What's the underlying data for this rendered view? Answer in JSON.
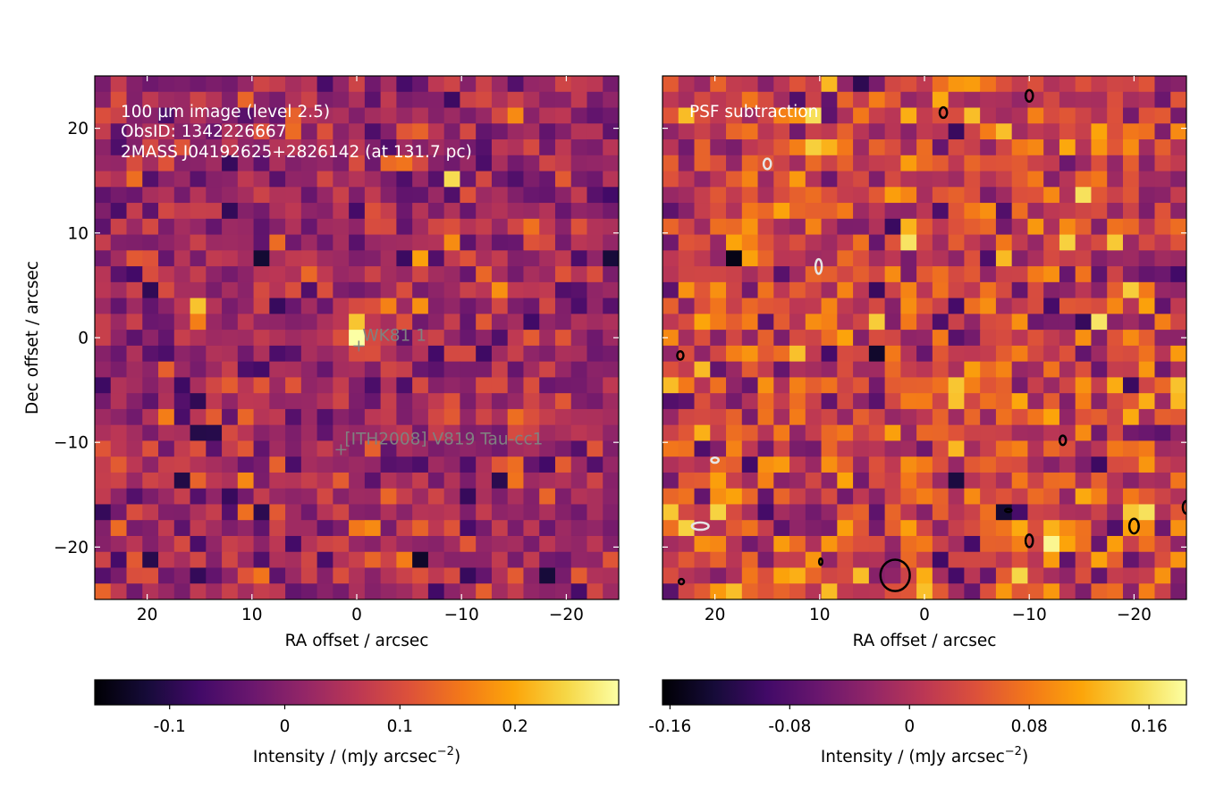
{
  "chart_data": [
    {
      "type": "heatmap",
      "annotation_lines": [
        "100 µm image (level 2.5)",
        "ObsID: 1342226667",
        "2MASS J04192625+2826142 (at 131.7 pc)"
      ],
      "xlabel": "RA offset / arcsec",
      "ylabel": "Dec offset / arcsec",
      "xlim": [
        25,
        -25
      ],
      "ylim": [
        -25,
        25
      ],
      "xticks": [
        20,
        10,
        0,
        -10,
        -20
      ],
      "yticks": [
        20,
        10,
        0,
        -10,
        -20
      ],
      "xtick_labels": [
        "20",
        "10",
        "0",
        "−10",
        "−20"
      ],
      "ytick_labels": [
        "20",
        "10",
        "0",
        "−10",
        "−20"
      ],
      "colormap": "inferno",
      "grid": false,
      "sources": [
        {
          "name": "WK81 1",
          "x": -0.2,
          "y": -0.8
        },
        {
          "name": "[ITH2008] V819 Tau-cc1",
          "x": 1.5,
          "y": -10.7
        }
      ],
      "colorbar": {
        "label": "Intensity / (mJy arcsec",
        "label_sup": "−2",
        "label_end": ")",
        "vmin": -0.165,
        "vmax": 0.29,
        "ticks": [
          -0.1,
          0,
          0.1,
          0.2
        ],
        "tick_labels": [
          "-0.1",
          "0",
          "0.1",
          "0.2"
        ]
      }
    },
    {
      "type": "heatmap",
      "annotation_lines": [
        "PSF subtraction"
      ],
      "xlabel": "RA offset / arcsec",
      "xlim": [
        25,
        -25
      ],
      "ylim": [
        -25,
        25
      ],
      "xticks": [
        20,
        10,
        0,
        -10,
        -20
      ],
      "xtick_labels": [
        "20",
        "10",
        "0",
        "−10",
        "−20"
      ],
      "colormap": "inferno",
      "grid": false,
      "contours": [
        {
          "x": 2.8,
          "y": -22.7,
          "rx": 1.4,
          "ry": 1.5,
          "color": "black"
        },
        {
          "x": 15,
          "y": 16.6,
          "rx": 0.35,
          "ry": 0.5,
          "color": "white"
        },
        {
          "x": 10.1,
          "y": 6.8,
          "rx": 0.3,
          "ry": 0.7,
          "color": "white"
        },
        {
          "x": 23.3,
          "y": -1.7,
          "rx": 0.3,
          "ry": 0.4,
          "color": "black"
        },
        {
          "x": 20,
          "y": -11.7,
          "rx": 0.35,
          "ry": 0.25,
          "color": "white"
        },
        {
          "x": 21.4,
          "y": -18,
          "rx": 0.8,
          "ry": 0.35,
          "color": "white"
        },
        {
          "x": -1.8,
          "y": 21.5,
          "rx": 0.35,
          "ry": 0.5,
          "color": "black"
        },
        {
          "x": -10,
          "y": 23.1,
          "rx": 0.35,
          "ry": 0.55,
          "color": "black"
        },
        {
          "x": -13.2,
          "y": -9.8,
          "rx": 0.3,
          "ry": 0.45,
          "color": "black"
        },
        {
          "x": -10,
          "y": -19.4,
          "rx": 0.35,
          "ry": 0.6,
          "color": "black"
        },
        {
          "x": -20,
          "y": -18,
          "rx": 0.45,
          "ry": 0.7,
          "color": "black"
        },
        {
          "x": -25,
          "y": -16.2,
          "rx": 0.35,
          "ry": 0.6,
          "color": "black"
        },
        {
          "x": 9.9,
          "y": -21.4,
          "rx": 0.15,
          "ry": 0.3,
          "color": "black"
        },
        {
          "x": 23.2,
          "y": -23.3,
          "rx": 0.25,
          "ry": 0.25,
          "color": "black"
        },
        {
          "x": -8,
          "y": -16.5,
          "rx": 0.3,
          "ry": 0.15,
          "color": "black"
        }
      ],
      "colorbar": {
        "label": "Intensity / (mJy arcsec",
        "label_sup": "−2",
        "label_end": ")",
        "vmin": -0.165,
        "vmax": 0.185,
        "ticks": [
          -0.16,
          -0.08,
          0,
          0.08,
          0.16
        ],
        "tick_labels": [
          "-0.16",
          "-0.08",
          "0",
          "0.08",
          "0.16"
        ]
      }
    }
  ]
}
